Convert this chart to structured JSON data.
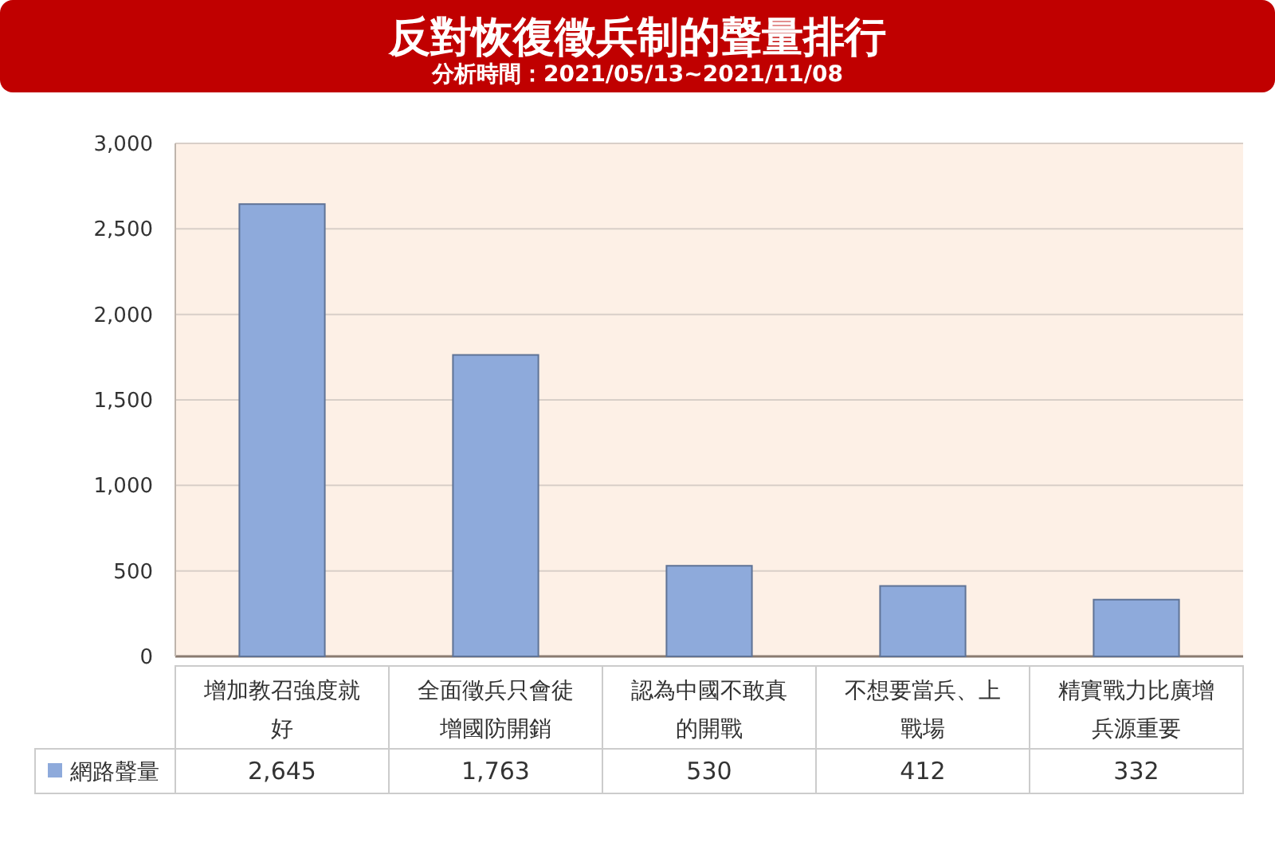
{
  "chart_data": {
    "type": "bar",
    "title": "反對恢復徵兵制的聲量排行",
    "subtitle": "分析時間：2021/05/13~2021/11/08",
    "categories": [
      "增加教召強度就好",
      "全面徵兵只會徒增國防開銷",
      "認為中國不敢真的開戰",
      "不想要當兵、上戰場",
      "精實戰力比廣增兵源重要"
    ],
    "series": [
      {
        "name": "網路聲量",
        "color": "#8eaadb",
        "values": [
          2645,
          1763,
          530,
          412,
          332
        ],
        "value_labels": [
          "2,645",
          "1,763",
          "530",
          "412",
          "332"
        ]
      }
    ],
    "ylim": [
      0,
      3000
    ],
    "yticks": [
      {
        "value": 0,
        "label": "0"
      },
      {
        "value": 500,
        "label": "500"
      },
      {
        "value": 1000,
        "label": "1,000"
      },
      {
        "value": 1500,
        "label": "1,500"
      },
      {
        "value": 2000,
        "label": "2,000"
      },
      {
        "value": 2500,
        "label": "2,500"
      },
      {
        "value": 3000,
        "label": "3,000"
      }
    ],
    "grid": "y",
    "legend": "bottom left"
  }
}
